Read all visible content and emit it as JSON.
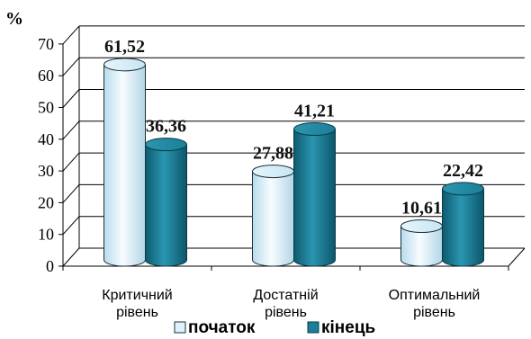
{
  "chart_data": {
    "type": "bar",
    "title": "",
    "xlabel": "",
    "ylabel": "%",
    "ylim": [
      0,
      70
    ],
    "yticks": [
      0,
      10,
      20,
      30,
      40,
      50,
      60,
      70
    ],
    "grid": true,
    "legend_position": "bottom",
    "categories": [
      [
        "Критичний",
        "рівень"
      ],
      [
        "Достатній",
        "рівень"
      ],
      [
        "Оптимальний",
        "рівень"
      ]
    ],
    "series": [
      {
        "name": "початок",
        "values": [
          61.52,
          27.88,
          10.61
        ],
        "labels": [
          "61,52",
          "27,88",
          "10,61"
        ],
        "color": "#dff2fb"
      },
      {
        "name": "кінець",
        "values": [
          36.36,
          41.21,
          22.42
        ],
        "labels": [
          "36,36",
          "41,21",
          "22,42"
        ],
        "color": "#1d7f97"
      }
    ]
  }
}
